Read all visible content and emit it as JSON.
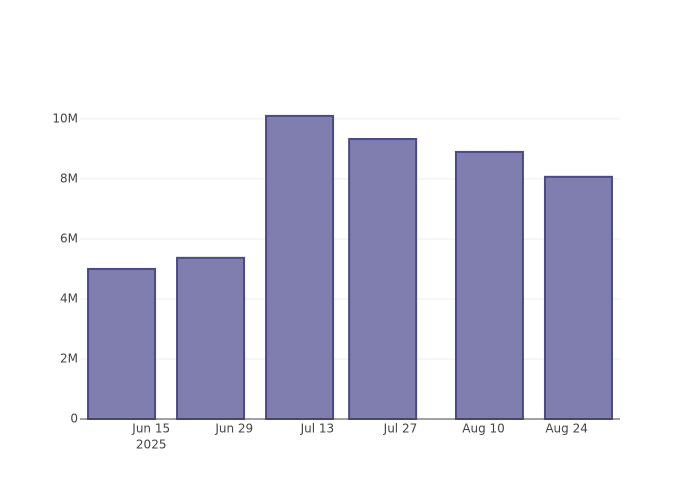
{
  "chart_data": {
    "type": "bar",
    "x": [
      "2025-06-10",
      "2025-06-25",
      "2025-07-10",
      "2025-07-24",
      "2025-08-11",
      "2025-08-26"
    ],
    "values": [
      5000000,
      5370000,
      10100000,
      9330000,
      8900000,
      8070000
    ],
    "color": "#7f7eaf",
    "edge_color": "#4a4a88",
    "xlim": [
      "2025-06-03",
      "2025-09-02"
    ],
    "xticks": [
      {
        "value": "2025-06-15",
        "label": "Jun 15"
      },
      {
        "value": "2025-06-29",
        "label": "Jun 29"
      },
      {
        "value": "2025-07-13",
        "label": "Jul 13"
      },
      {
        "value": "2025-07-27",
        "label": "Jul 27"
      },
      {
        "value": "2025-08-10",
        "label": "Aug 10"
      },
      {
        "value": "2025-08-24",
        "label": "Aug 24"
      }
    ],
    "x_year": "2025",
    "ylim": [
      0,
      10630000
    ],
    "yticks": [
      0,
      {
        "value": 2000000,
        "label": "2M"
      },
      {
        "value": 4000000,
        "label": "4M"
      },
      {
        "value": 6000000,
        "label": "6M"
      },
      {
        "value": 8000000,
        "label": "8M"
      },
      {
        "value": 10000000,
        "label": "10M"
      }
    ],
    "grid": true
  }
}
